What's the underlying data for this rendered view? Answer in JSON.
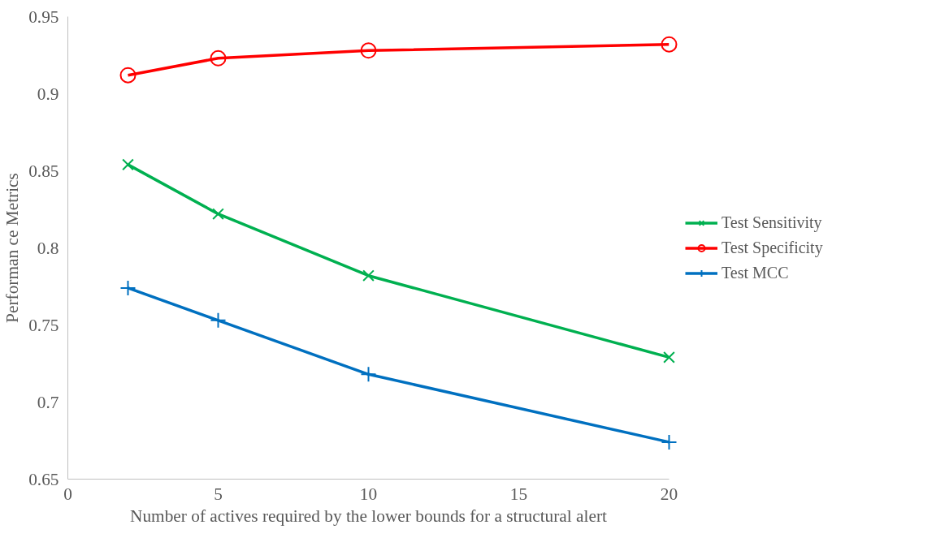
{
  "chart_data": {
    "type": "line",
    "xlabel": "Number of actives required by the lower bounds for a structural alert",
    "ylabel": "Performan ce Metrics",
    "x": [
      2,
      5,
      10,
      20
    ],
    "series": [
      {
        "name": "Test Sensitivity",
        "color": "#00b050",
        "marker": "x",
        "values": [
          0.854,
          0.822,
          0.782,
          0.729
        ]
      },
      {
        "name": "Test Specificity",
        "color": "#ff0000",
        "marker": "circle",
        "values": [
          0.912,
          0.923,
          0.928,
          0.932
        ]
      },
      {
        "name": "Test MCC",
        "color": "#0070c0",
        "marker": "cross",
        "values": [
          0.774,
          0.753,
          0.718,
          0.674
        ]
      }
    ],
    "xlim": [
      0,
      20
    ],
    "xticks": [
      0,
      5,
      10,
      15,
      20
    ],
    "ylim": [
      0.65,
      0.95
    ],
    "yticks": [
      0.65,
      0.7,
      0.75,
      0.8,
      0.85,
      0.9,
      0.95
    ],
    "grid": false,
    "legend": "right",
    "line_style": "solid"
  }
}
